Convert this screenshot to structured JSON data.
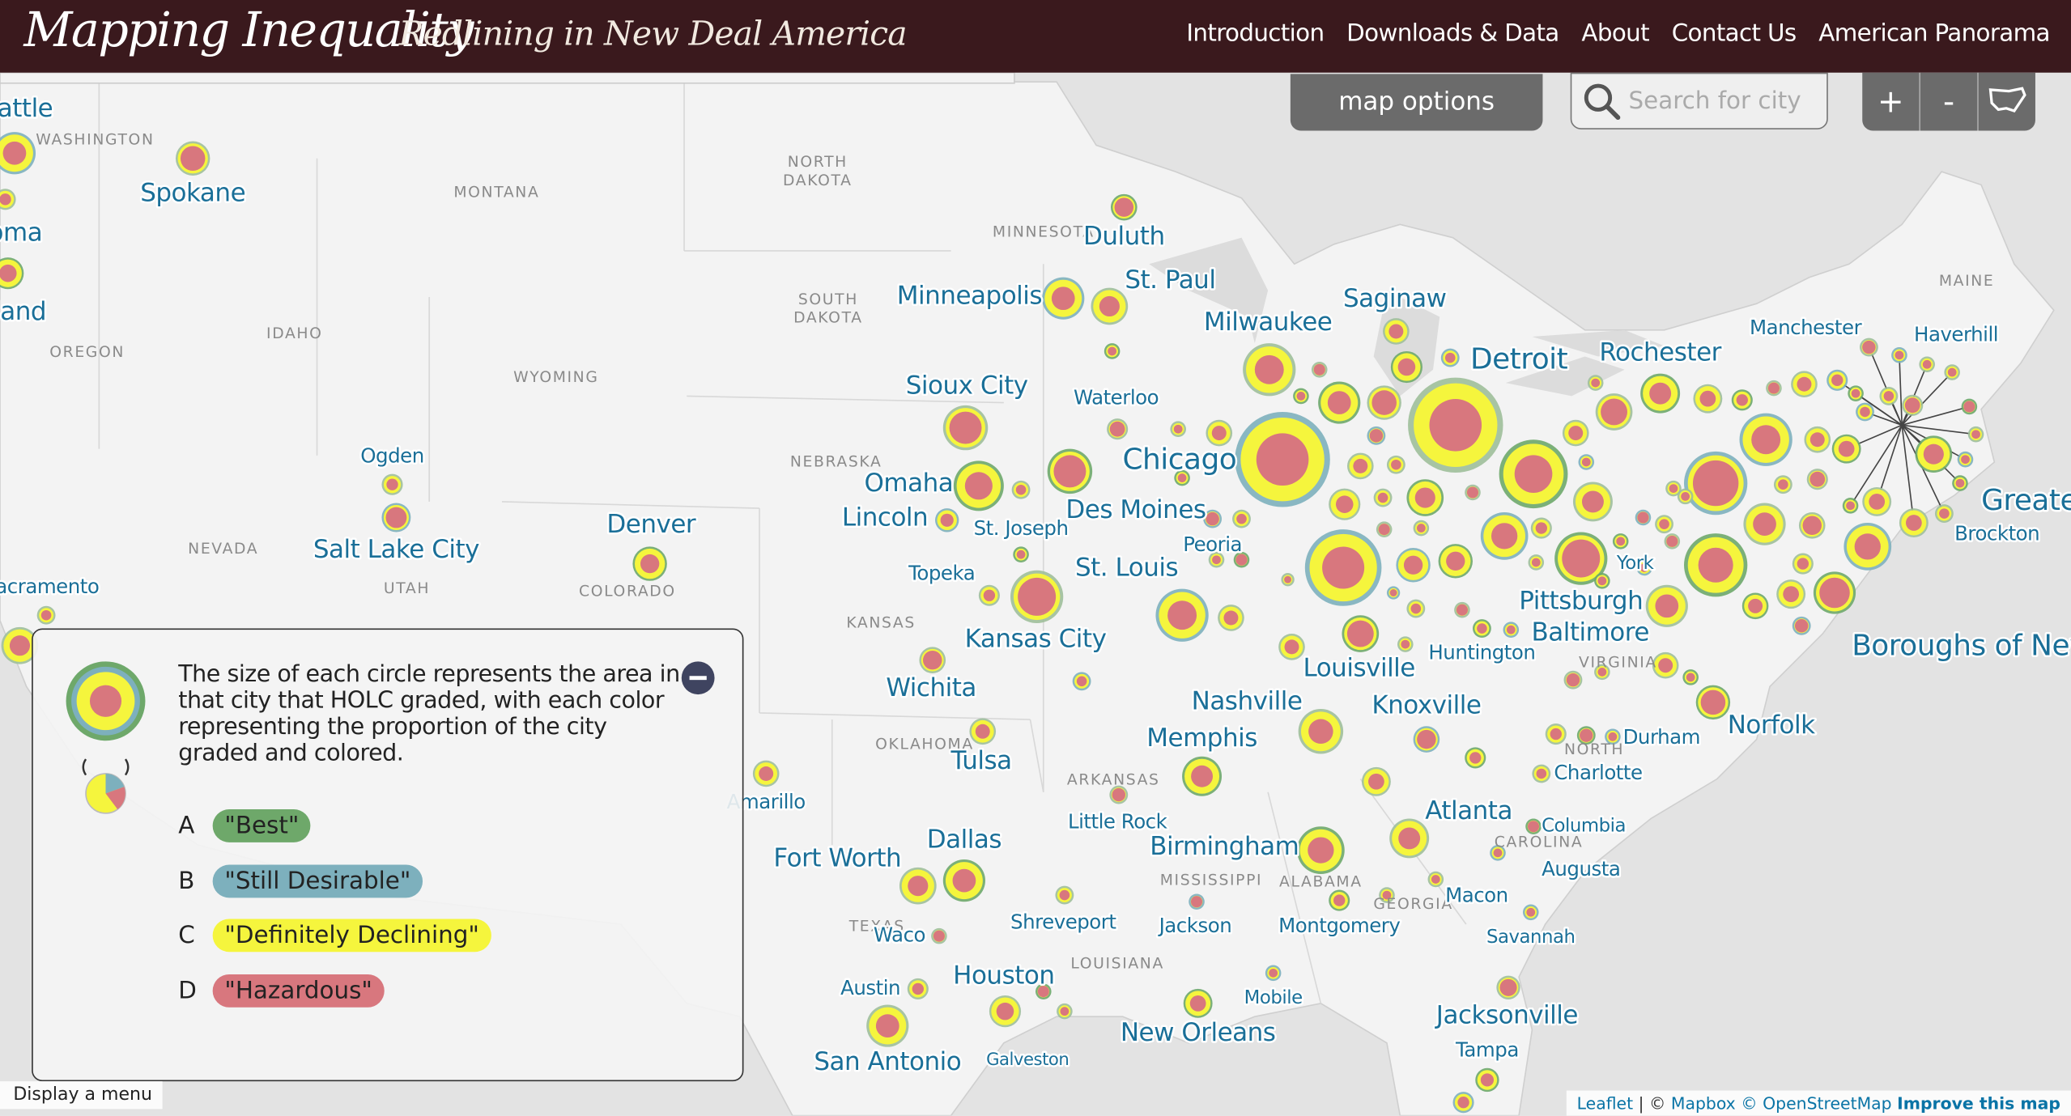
{
  "header": {
    "title": "Mapping Inequality",
    "subtitle": "Redlining in New Deal America",
    "nav": [
      "Introduction",
      "Downloads & Data",
      "About",
      "Contact Us",
      "American Panorama"
    ]
  },
  "controls": {
    "map_options": "map options",
    "search_placeholder": "Search for city",
    "zoom_in": "+",
    "zoom_out": "-"
  },
  "map": {
    "cities": [
      "Seattle",
      "Spokane",
      "Tacoma",
      "Portland",
      "Ogden",
      "Salt Lake City",
      "Denver",
      "Sacramento",
      "Duluth",
      "Minneapolis",
      "St. Paul",
      "Milwaukee",
      "Saginaw",
      "Detroit",
      "Rochester",
      "Manchester",
      "Haverhill",
      "Sioux City",
      "Waterloo",
      "Omaha",
      "Chicago",
      "Lincoln",
      "St. Joseph",
      "Des Moines",
      "Peoria",
      "Greater",
      "Brockton",
      "Topeka",
      "St. Louis",
      "York",
      "Pittsburgh",
      "Baltimore",
      "Kansas City",
      "Huntington",
      "Boroughs of New",
      "Louisville",
      "Wichita",
      "Nashville",
      "Knoxville",
      "Norfolk",
      "Memphis",
      "Durham",
      "Charlotte",
      "Tulsa",
      "Amarillo",
      "Atlanta",
      "Columbia",
      "Little Rock",
      "Birmingham",
      "Dallas",
      "Fort Worth",
      "Augusta",
      "Macon",
      "Shreveport",
      "Jackson",
      "Montgomery",
      "Waco",
      "Savannah",
      "Houston",
      "Austin",
      "Mobile",
      "Jacksonville",
      "New Orleans",
      "Galveston",
      "San Antonio",
      "Tampa"
    ],
    "state_labels": [
      "WASHINGTON",
      "MONTANA",
      "NORTH",
      "DAKOTA",
      "MINNESOTA",
      "SOUTH",
      "DAKOTA",
      "IDAHO",
      "OREGON",
      "WYOMING",
      "NEBRASKA",
      "NEVADA",
      "UTAH",
      "COLORADO",
      "KANSAS",
      "OKLAHOMA",
      "ARKANSAS",
      "MISSISSIPPI",
      "ALABAMA",
      "GEORGIA",
      "TEXAS",
      "LOUISIANA",
      "MAINE",
      "NORTH",
      "CAROLINA",
      "VIRGINIA"
    ]
  },
  "legend": {
    "description": "The size of each circle represents the area in that city that HOLC graded, with each color representing the proportion of the city graded and colored.",
    "grades": [
      {
        "letter": "A",
        "label": "\"Best\""
      },
      {
        "letter": "B",
        "label": "\"Still Desirable\""
      },
      {
        "letter": "C",
        "label": "\"Definitely Declining\""
      },
      {
        "letter": "D",
        "label": "\"Hazardous\""
      }
    ]
  },
  "menu_toggle": "Display a menu",
  "attribution": {
    "leaflet": "Leaflet",
    "separator": "| ©",
    "mapbox": "Mapbox",
    "osm": "© OpenStreetMap",
    "improve": "Improve this map"
  }
}
